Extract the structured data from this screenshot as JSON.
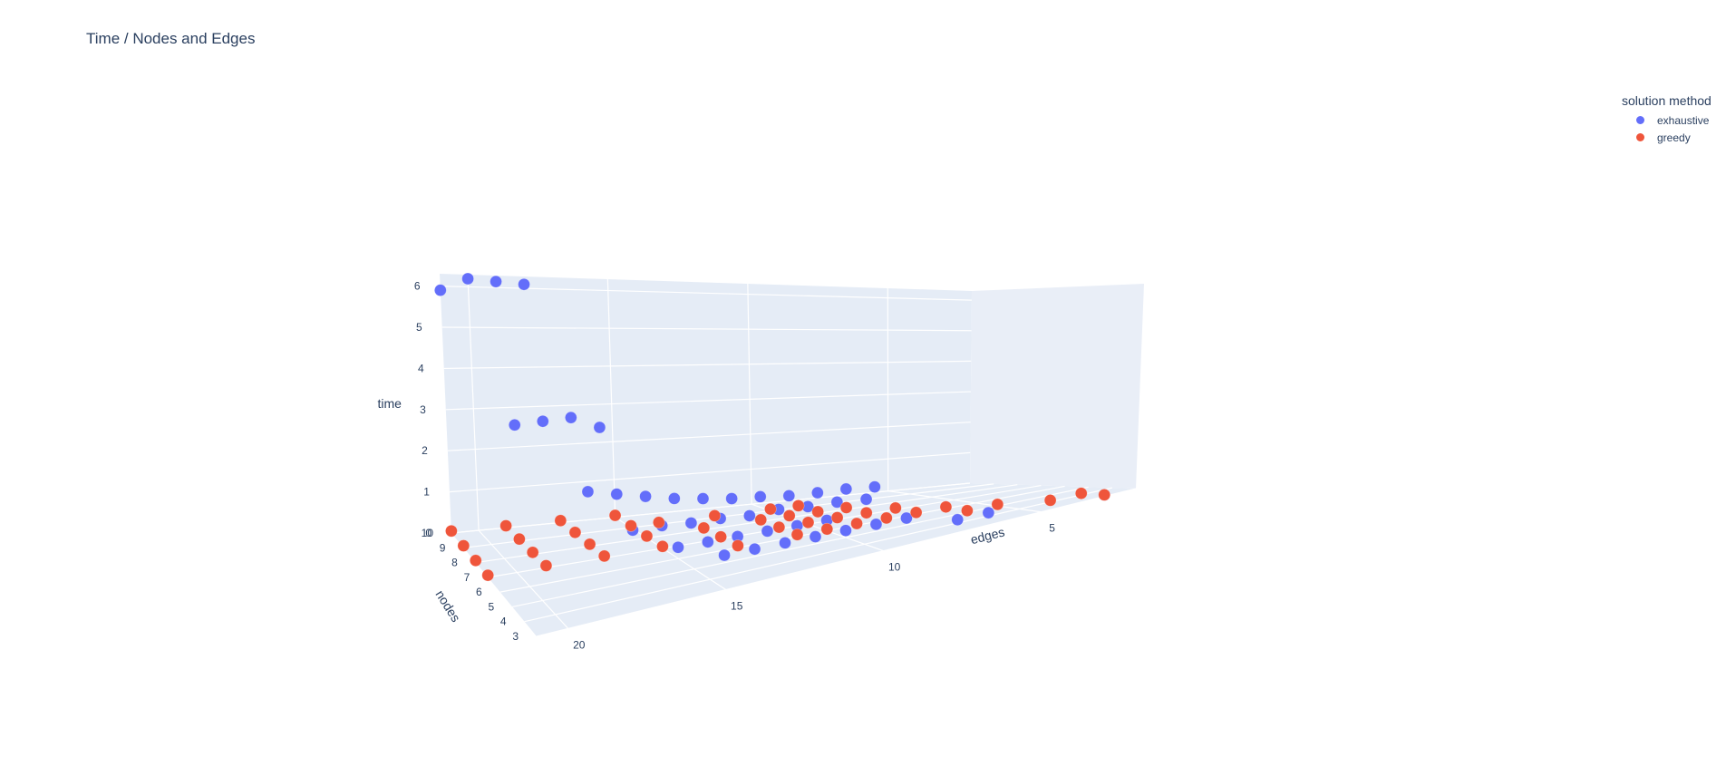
{
  "chart_data": {
    "type": "scatter",
    "title": "Time / Nodes and Edges",
    "axes": {
      "x": {
        "label": "nodes",
        "ticks": [
          "3",
          "4",
          "5",
          "6",
          "7",
          "8",
          "9",
          "10"
        ],
        "range": [
          3,
          10
        ]
      },
      "y": {
        "label": "edges",
        "ticks": [
          "5",
          "10",
          "15",
          "20"
        ],
        "range": [
          2,
          21
        ]
      },
      "z": {
        "label": "time",
        "ticks": [
          "0",
          "1",
          "2",
          "3",
          "4",
          "5",
          "6"
        ],
        "range": [
          0,
          6.3
        ]
      }
    },
    "legend": {
      "title": "solution method",
      "position": "top-right"
    },
    "series": [
      {
        "name": "exhaustive",
        "color": "#636efa",
        "points": [
          {
            "nodes": 10,
            "edges": 21,
            "time": 5.9
          },
          {
            "nodes": 10,
            "edges": 20,
            "time": 6.2
          },
          {
            "nodes": 10,
            "edges": 19,
            "time": 6.15
          },
          {
            "nodes": 10,
            "edges": 18,
            "time": 6.1
          },
          {
            "nodes": 9,
            "edges": 19,
            "time": 2.9
          },
          {
            "nodes": 9,
            "edges": 18,
            "time": 2.95
          },
          {
            "nodes": 9,
            "edges": 17,
            "time": 3.0
          },
          {
            "nodes": 9,
            "edges": 16,
            "time": 2.7
          },
          {
            "nodes": 8,
            "edges": 17,
            "time": 1.4
          },
          {
            "nodes": 8,
            "edges": 16,
            "time": 1.25
          },
          {
            "nodes": 8,
            "edges": 15,
            "time": 1.1
          },
          {
            "nodes": 8,
            "edges": 14,
            "time": 0.95
          },
          {
            "nodes": 8,
            "edges": 13,
            "time": 0.85
          },
          {
            "nodes": 8,
            "edges": 12,
            "time": 0.75
          },
          {
            "nodes": 8,
            "edges": 11,
            "time": 0.7
          },
          {
            "nodes": 8,
            "edges": 10,
            "time": 0.62
          },
          {
            "nodes": 8,
            "edges": 9,
            "time": 0.6
          },
          {
            "nodes": 8,
            "edges": 8,
            "time": 0.6
          },
          {
            "nodes": 8,
            "edges": 7,
            "time": 0.55
          },
          {
            "nodes": 7,
            "edges": 16,
            "time": 0.6
          },
          {
            "nodes": 7,
            "edges": 15,
            "time": 0.6
          },
          {
            "nodes": 7,
            "edges": 14,
            "time": 0.55
          },
          {
            "nodes": 7,
            "edges": 13,
            "time": 0.55
          },
          {
            "nodes": 7,
            "edges": 12,
            "time": 0.5
          },
          {
            "nodes": 7,
            "edges": 11,
            "time": 0.55
          },
          {
            "nodes": 7,
            "edges": 10,
            "time": 0.5
          },
          {
            "nodes": 7,
            "edges": 9,
            "time": 0.5
          },
          {
            "nodes": 7,
            "edges": 8,
            "time": 0.45
          },
          {
            "nodes": 6,
            "edges": 15,
            "time": 0.3
          },
          {
            "nodes": 6,
            "edges": 14,
            "time": 0.3
          },
          {
            "nodes": 6,
            "edges": 13,
            "time": 0.3
          },
          {
            "nodes": 6,
            "edges": 12,
            "time": 0.3
          },
          {
            "nodes": 6,
            "edges": 11,
            "time": 0.3
          },
          {
            "nodes": 6,
            "edges": 10,
            "time": 0.3
          },
          {
            "nodes": 5,
            "edges": 14,
            "time": 0.2
          },
          {
            "nodes": 5,
            "edges": 13,
            "time": 0.2
          },
          {
            "nodes": 5,
            "edges": 12,
            "time": 0.2
          },
          {
            "nodes": 5,
            "edges": 11,
            "time": 0.2
          },
          {
            "nodes": 5,
            "edges": 10,
            "time": 0.2
          },
          {
            "nodes": 5,
            "edges": 9,
            "time": 0.2
          },
          {
            "nodes": 5,
            "edges": 8,
            "time": 0.2
          },
          {
            "nodes": 4,
            "edges": 7,
            "time": 0.1
          },
          {
            "nodes": 4,
            "edges": 6,
            "time": 0.1
          },
          {
            "nodes": 3,
            "edges": 3,
            "time": 0.05
          }
        ]
      },
      {
        "name": "greedy",
        "color": "#ef553b",
        "points": [
          {
            "nodes": 10,
            "edges": 21,
            "time": 0.05
          },
          {
            "nodes": 9,
            "edges": 21,
            "time": 0.05
          },
          {
            "nodes": 8,
            "edges": 21,
            "time": 0.05
          },
          {
            "nodes": 7,
            "edges": 21,
            "time": 0.05
          },
          {
            "nodes": 10,
            "edges": 19,
            "time": 0.05
          },
          {
            "nodes": 9,
            "edges": 19,
            "time": 0.05
          },
          {
            "nodes": 8,
            "edges": 19,
            "time": 0.05
          },
          {
            "nodes": 7,
            "edges": 19,
            "time": 0.05
          },
          {
            "nodes": 10,
            "edges": 17,
            "time": 0.05
          },
          {
            "nodes": 9,
            "edges": 17,
            "time": 0.05
          },
          {
            "nodes": 8,
            "edges": 17,
            "time": 0.05
          },
          {
            "nodes": 7,
            "edges": 17,
            "time": 0.05
          },
          {
            "nodes": 10,
            "edges": 15,
            "time": 0.05
          },
          {
            "nodes": 9,
            "edges": 15,
            "time": 0.05
          },
          {
            "nodes": 8,
            "edges": 15,
            "time": 0.05
          },
          {
            "nodes": 7,
            "edges": 15,
            "time": 0.05
          },
          {
            "nodes": 9,
            "edges": 14,
            "time": 0.05
          },
          {
            "nodes": 8,
            "edges": 13,
            "time": 0.05
          },
          {
            "nodes": 7,
            "edges": 13,
            "time": 0.05
          },
          {
            "nodes": 6,
            "edges": 13,
            "time": 0.05
          },
          {
            "nodes": 9,
            "edges": 12,
            "time": 0.05
          },
          {
            "nodes": 8,
            "edges": 11,
            "time": 0.05
          },
          {
            "nodes": 7,
            "edges": 11,
            "time": 0.05
          },
          {
            "nodes": 6,
            "edges": 11,
            "time": 0.05
          },
          {
            "nodes": 9,
            "edges": 10,
            "time": 0.05
          },
          {
            "nodes": 8,
            "edges": 10,
            "time": 0.05
          },
          {
            "nodes": 7,
            "edges": 10,
            "time": 0.05
          },
          {
            "nodes": 6,
            "edges": 10,
            "time": 0.05
          },
          {
            "nodes": 9,
            "edges": 9,
            "time": 0.05
          },
          {
            "nodes": 8,
            "edges": 9,
            "time": 0.05
          },
          {
            "nodes": 7,
            "edges": 9,
            "time": 0.05
          },
          {
            "nodes": 6,
            "edges": 9,
            "time": 0.05
          },
          {
            "nodes": 8,
            "edges": 8,
            "time": 0.05
          },
          {
            "nodes": 7,
            "edges": 8,
            "time": 0.05
          },
          {
            "nodes": 6,
            "edges": 8,
            "time": 0.05
          },
          {
            "nodes": 7,
            "edges": 7,
            "time": 0.05
          },
          {
            "nodes": 6,
            "edges": 7,
            "time": 0.05
          },
          {
            "nodes": 6,
            "edges": 6,
            "time": 0.05
          },
          {
            "nodes": 5,
            "edges": 6,
            "time": 0.05
          },
          {
            "nodes": 5,
            "edges": 5,
            "time": 0.05
          },
          {
            "nodes": 4,
            "edges": 4,
            "time": 0.05
          },
          {
            "nodes": 4,
            "edges": 3,
            "time": 0.05
          },
          {
            "nodes": 3,
            "edges": 3,
            "time": 0.05
          }
        ]
      }
    ]
  }
}
